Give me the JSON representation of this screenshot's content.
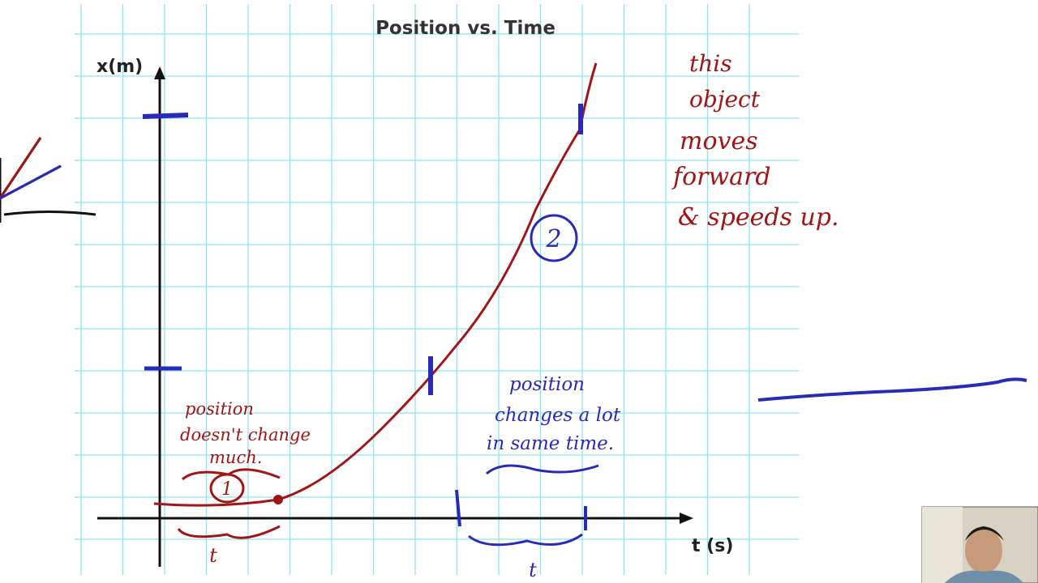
{
  "header": {
    "title": "Position vs. Time"
  },
  "axes": {
    "y_label": "x(m)",
    "x_label": "t (s)"
  },
  "annotations": {
    "note": [
      "this",
      "object",
      "moves",
      "forward",
      "& speeds up."
    ],
    "segment_1": {
      "label": "1",
      "note": [
        "position",
        "doesn't change",
        "much."
      ],
      "interval": "t"
    },
    "segment_2": {
      "label": "2",
      "note": [
        "position",
        "changes a lot",
        "in same time."
      ],
      "interval": "t"
    }
  }
}
